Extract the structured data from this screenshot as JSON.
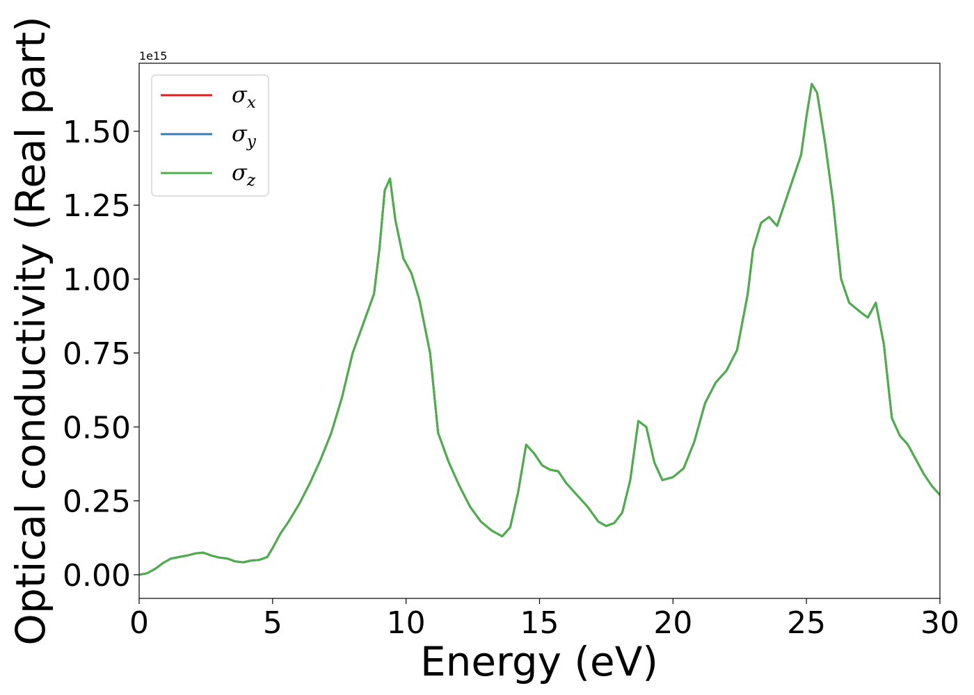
{
  "chart_data": {
    "type": "line",
    "xlabel": "Energy (eV)",
    "ylabel": "Optical conductivity (Real part)",
    "y_offset_label": "1e15",
    "y_multiplier": 1000000000000000.0,
    "xlim": [
      0,
      30
    ],
    "ylim": [
      -0.08,
      1.73
    ],
    "x_ticks": [
      0,
      5,
      10,
      15,
      20,
      25,
      30
    ],
    "x_tick_labels": [
      "0",
      "5",
      "10",
      "15",
      "20",
      "25",
      "30"
    ],
    "y_ticks": [
      0.0,
      0.25,
      0.5,
      0.75,
      1.0,
      1.25,
      1.5
    ],
    "y_tick_labels": [
      "0.00",
      "0.25",
      "0.50",
      "0.75",
      "1.00",
      "1.25",
      "1.50"
    ],
    "grid": false,
    "legend_position": "top-left",
    "series": [
      {
        "name": "σ",
        "subscript": "x",
        "color": "#e41a1c",
        "x": [
          0,
          0.3,
          0.6,
          0.9,
          1.2,
          1.5,
          1.8,
          2.1,
          2.4,
          2.7,
          3.0,
          3.3,
          3.6,
          3.9,
          4.2,
          4.5,
          4.8,
          5.0,
          5.3,
          5.6,
          6.0,
          6.4,
          6.8,
          7.2,
          7.6,
          8.0,
          8.4,
          8.8,
          9.0,
          9.2,
          9.4,
          9.6,
          9.9,
          10.2,
          10.5,
          10.9,
          11.2,
          11.6,
          12.0,
          12.4,
          12.8,
          13.2,
          13.6,
          13.9,
          14.2,
          14.5,
          14.8,
          15.1,
          15.4,
          15.7,
          16.0,
          16.4,
          16.8,
          17.2,
          17.5,
          17.8,
          18.1,
          18.4,
          18.7,
          19.0,
          19.3,
          19.6,
          20.0,
          20.4,
          20.8,
          21.2,
          21.6,
          22.0,
          22.4,
          22.8,
          23.0,
          23.3,
          23.6,
          23.9,
          24.2,
          24.5,
          24.8,
          25.0,
          25.2,
          25.4,
          25.7,
          26.0,
          26.3,
          26.6,
          27.0,
          27.3,
          27.6,
          27.9,
          28.2,
          28.5,
          28.8,
          29.1,
          29.4,
          29.7,
          30.0
        ],
        "y": [
          0.0,
          0.005,
          0.02,
          0.04,
          0.055,
          0.06,
          0.065,
          0.072,
          0.075,
          0.065,
          0.058,
          0.055,
          0.045,
          0.042,
          0.048,
          0.05,
          0.06,
          0.09,
          0.14,
          0.18,
          0.24,
          0.31,
          0.39,
          0.48,
          0.6,
          0.75,
          0.85,
          0.95,
          1.1,
          1.3,
          1.34,
          1.2,
          1.07,
          1.02,
          0.93,
          0.75,
          0.48,
          0.38,
          0.3,
          0.23,
          0.18,
          0.15,
          0.13,
          0.16,
          0.28,
          0.44,
          0.41,
          0.37,
          0.355,
          0.35,
          0.31,
          0.27,
          0.23,
          0.18,
          0.165,
          0.175,
          0.21,
          0.32,
          0.52,
          0.5,
          0.38,
          0.32,
          0.33,
          0.36,
          0.45,
          0.58,
          0.65,
          0.69,
          0.76,
          0.95,
          1.1,
          1.19,
          1.21,
          1.18,
          1.26,
          1.34,
          1.42,
          1.55,
          1.66,
          1.63,
          1.46,
          1.26,
          1.0,
          0.92,
          0.89,
          0.87,
          0.92,
          0.78,
          0.53,
          0.47,
          0.44,
          0.39,
          0.34,
          0.3,
          0.27
        ]
      },
      {
        "name": "σ",
        "subscript": "y",
        "color": "#377eb8",
        "x": [
          0,
          0.3,
          0.6,
          0.9,
          1.2,
          1.5,
          1.8,
          2.1,
          2.4,
          2.7,
          3.0,
          3.3,
          3.6,
          3.9,
          4.2,
          4.5,
          4.8,
          5.0,
          5.3,
          5.6,
          6.0,
          6.4,
          6.8,
          7.2,
          7.6,
          8.0,
          8.4,
          8.8,
          9.0,
          9.2,
          9.4,
          9.6,
          9.9,
          10.2,
          10.5,
          10.9,
          11.2,
          11.6,
          12.0,
          12.4,
          12.8,
          13.2,
          13.6,
          13.9,
          14.2,
          14.5,
          14.8,
          15.1,
          15.4,
          15.7,
          16.0,
          16.4,
          16.8,
          17.2,
          17.5,
          17.8,
          18.1,
          18.4,
          18.7,
          19.0,
          19.3,
          19.6,
          20.0,
          20.4,
          20.8,
          21.2,
          21.6,
          22.0,
          22.4,
          22.8,
          23.0,
          23.3,
          23.6,
          23.9,
          24.2,
          24.5,
          24.8,
          25.0,
          25.2,
          25.4,
          25.7,
          26.0,
          26.3,
          26.6,
          27.0,
          27.3,
          27.6,
          27.9,
          28.2,
          28.5,
          28.8,
          29.1,
          29.4,
          29.7,
          30.0
        ],
        "y": [
          0.0,
          0.005,
          0.02,
          0.04,
          0.055,
          0.06,
          0.065,
          0.072,
          0.075,
          0.065,
          0.058,
          0.055,
          0.045,
          0.042,
          0.048,
          0.05,
          0.06,
          0.09,
          0.14,
          0.18,
          0.24,
          0.31,
          0.39,
          0.48,
          0.6,
          0.75,
          0.85,
          0.95,
          1.1,
          1.3,
          1.34,
          1.2,
          1.07,
          1.02,
          0.93,
          0.75,
          0.48,
          0.38,
          0.3,
          0.23,
          0.18,
          0.15,
          0.13,
          0.16,
          0.28,
          0.44,
          0.41,
          0.37,
          0.355,
          0.35,
          0.31,
          0.27,
          0.23,
          0.18,
          0.165,
          0.175,
          0.21,
          0.32,
          0.52,
          0.5,
          0.38,
          0.32,
          0.33,
          0.36,
          0.45,
          0.58,
          0.65,
          0.69,
          0.76,
          0.95,
          1.1,
          1.19,
          1.21,
          1.18,
          1.26,
          1.34,
          1.42,
          1.55,
          1.66,
          1.63,
          1.46,
          1.26,
          1.0,
          0.92,
          0.89,
          0.87,
          0.92,
          0.78,
          0.53,
          0.47,
          0.44,
          0.39,
          0.34,
          0.3,
          0.27
        ]
      },
      {
        "name": "σ",
        "subscript": "z",
        "color": "#4daf4a",
        "x": [
          0,
          0.3,
          0.6,
          0.9,
          1.2,
          1.5,
          1.8,
          2.1,
          2.4,
          2.7,
          3.0,
          3.3,
          3.6,
          3.9,
          4.2,
          4.5,
          4.8,
          5.0,
          5.3,
          5.6,
          6.0,
          6.4,
          6.8,
          7.2,
          7.6,
          8.0,
          8.4,
          8.8,
          9.0,
          9.2,
          9.4,
          9.6,
          9.9,
          10.2,
          10.5,
          10.9,
          11.2,
          11.6,
          12.0,
          12.4,
          12.8,
          13.2,
          13.6,
          13.9,
          14.2,
          14.5,
          14.8,
          15.1,
          15.4,
          15.7,
          16.0,
          16.4,
          16.8,
          17.2,
          17.5,
          17.8,
          18.1,
          18.4,
          18.7,
          19.0,
          19.3,
          19.6,
          20.0,
          20.4,
          20.8,
          21.2,
          21.6,
          22.0,
          22.4,
          22.8,
          23.0,
          23.3,
          23.6,
          23.9,
          24.2,
          24.5,
          24.8,
          25.0,
          25.2,
          25.4,
          25.7,
          26.0,
          26.3,
          26.6,
          27.0,
          27.3,
          27.6,
          27.9,
          28.2,
          28.5,
          28.8,
          29.1,
          29.4,
          29.7,
          30.0
        ],
        "y": [
          0.0,
          0.005,
          0.02,
          0.04,
          0.055,
          0.06,
          0.065,
          0.072,
          0.075,
          0.065,
          0.058,
          0.055,
          0.045,
          0.042,
          0.048,
          0.05,
          0.06,
          0.09,
          0.14,
          0.18,
          0.24,
          0.31,
          0.39,
          0.48,
          0.6,
          0.75,
          0.85,
          0.95,
          1.1,
          1.3,
          1.34,
          1.2,
          1.07,
          1.02,
          0.93,
          0.75,
          0.48,
          0.38,
          0.3,
          0.23,
          0.18,
          0.15,
          0.13,
          0.16,
          0.28,
          0.44,
          0.41,
          0.37,
          0.355,
          0.35,
          0.31,
          0.27,
          0.23,
          0.18,
          0.165,
          0.175,
          0.21,
          0.32,
          0.52,
          0.5,
          0.38,
          0.32,
          0.33,
          0.36,
          0.45,
          0.58,
          0.65,
          0.69,
          0.76,
          0.95,
          1.1,
          1.19,
          1.21,
          1.18,
          1.26,
          1.34,
          1.42,
          1.55,
          1.66,
          1.63,
          1.46,
          1.26,
          1.0,
          0.92,
          0.89,
          0.87,
          0.92,
          0.78,
          0.53,
          0.47,
          0.44,
          0.39,
          0.34,
          0.3,
          0.27
        ]
      }
    ]
  }
}
